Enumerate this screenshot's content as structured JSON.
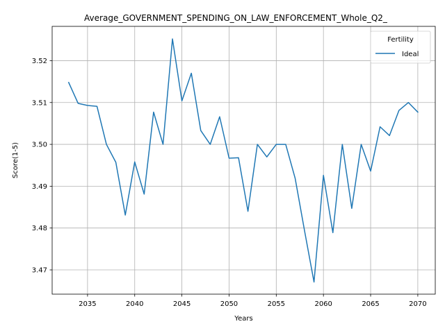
{
  "chart_data": {
    "type": "line",
    "title": "Average_GOVERNMENT_SPENDING_ON_LAW_ENFORCEMENT_Whole_Q2_",
    "xlabel": "Years",
    "ylabel": "Score(1-5)",
    "xlim": [
      2031.25,
      2071.85
    ],
    "ylim": [
      3.4642,
      3.5282
    ],
    "xticks": [
      2035,
      2040,
      2045,
      2050,
      2055,
      2060,
      2065,
      2070
    ],
    "yticks": [
      3.47,
      3.48,
      3.49,
      3.5,
      3.51,
      3.52
    ],
    "ytick_labels": [
      "3.47",
      "3.48",
      "3.49",
      "3.50",
      "3.51",
      "3.52"
    ],
    "grid": true,
    "legend": {
      "title": "Fertility",
      "placement": "top-right"
    },
    "series": [
      {
        "name": "Ideal",
        "color": "#1f77b4",
        "x": [
          2033,
          2034,
          2035,
          2036,
          2037,
          2038,
          2039,
          2040,
          2041,
          2042,
          2043,
          2044,
          2045,
          2046,
          2047,
          2048,
          2049,
          2050,
          2051,
          2052,
          2053,
          2054,
          2055,
          2056,
          2057,
          2058,
          2059,
          2060,
          2061,
          2062,
          2063,
          2064,
          2065,
          2066,
          2067,
          2068,
          2069,
          2070
        ],
        "values": [
          3.5148,
          3.5098,
          3.5093,
          3.5091,
          3.5,
          3.4957,
          3.4831,
          3.4958,
          3.4881,
          3.5077,
          3.5,
          3.5252,
          3.5104,
          3.517,
          3.5033,
          3.5,
          3.5066,
          3.4967,
          3.4968,
          3.484,
          3.5,
          3.497,
          3.5,
          3.5,
          3.4919,
          3.4793,
          3.4671,
          3.4926,
          3.4789,
          3.5,
          3.4847,
          3.5,
          3.4936,
          3.5042,
          3.5021,
          3.5081,
          3.51,
          3.5077
        ]
      }
    ]
  }
}
